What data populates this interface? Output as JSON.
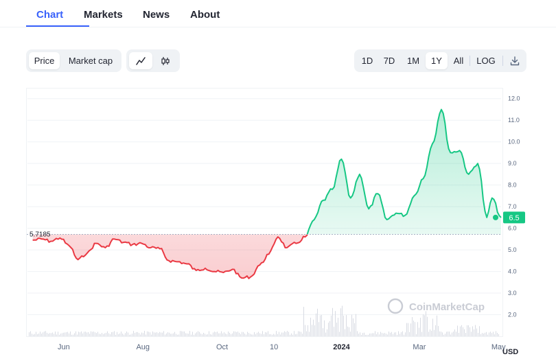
{
  "tabs": {
    "items": [
      {
        "label": "Chart",
        "active": true
      },
      {
        "label": "Markets",
        "active": false
      },
      {
        "label": "News",
        "active": false
      },
      {
        "label": "About",
        "active": false
      }
    ]
  },
  "controls": {
    "price_label": "Price",
    "market_cap_label": "Market cap",
    "line_icon": "line-chart-icon",
    "candle_icon": "candlestick-icon",
    "ranges": [
      "1D",
      "7D",
      "1M",
      "1Y",
      "All"
    ],
    "selected_range": "1Y",
    "log_label": "LOG",
    "download_icon": "download-icon"
  },
  "colors": {
    "up": "#16c784",
    "down": "#ea3943",
    "accent": "#3861fb"
  },
  "chart_data": {
    "type": "area",
    "baseline": 5.7185,
    "baseline_label": "5.7185",
    "current_price_label": "6.5",
    "currency_label": "USD",
    "watermark": "CoinMarketCap",
    "ylim": [
      1.0,
      12.5
    ],
    "yticks": [
      "12.0",
      "11.0",
      "10.0",
      "9.0",
      "8.0",
      "7.0",
      "6.0",
      "5.0",
      "4.0",
      "3.0",
      "2.0"
    ],
    "xlim": [
      "2023-05-04",
      "2024-05-03"
    ],
    "xticks": [
      {
        "label": "Jun",
        "date": "2023-06-01",
        "bold": false
      },
      {
        "label": "Aug",
        "date": "2023-08-01",
        "bold": false
      },
      {
        "label": "Oct",
        "date": "2023-10-01",
        "bold": false
      },
      {
        "label": "10",
        "date": "2023-11-10",
        "bold": false
      },
      {
        "label": "2024",
        "date": "2024-01-01",
        "bold": true
      },
      {
        "label": "Mar",
        "date": "2024-03-01",
        "bold": false
      },
      {
        "label": "May",
        "date": "2024-05-01",
        "bold": false
      }
    ],
    "series": [
      {
        "points": [
          [
            "2023-05-08",
            5.45
          ],
          [
            "2023-05-15",
            5.5
          ],
          [
            "2023-05-22",
            5.4
          ],
          [
            "2023-05-29",
            5.55
          ],
          [
            "2023-06-05",
            5.2
          ],
          [
            "2023-06-12",
            4.55
          ],
          [
            "2023-06-19",
            4.85
          ],
          [
            "2023-06-26",
            5.3
          ],
          [
            "2023-07-03",
            5.1
          ],
          [
            "2023-07-10",
            5.5
          ],
          [
            "2023-07-17",
            5.35
          ],
          [
            "2023-07-24",
            5.25
          ],
          [
            "2023-07-31",
            5.3
          ],
          [
            "2023-08-07",
            5.1
          ],
          [
            "2023-08-14",
            5.05
          ],
          [
            "2023-08-21",
            4.5
          ],
          [
            "2023-08-28",
            4.45
          ],
          [
            "2023-09-04",
            4.35
          ],
          [
            "2023-09-11",
            4.05
          ],
          [
            "2023-09-18",
            4.15
          ],
          [
            "2023-09-25",
            4.0
          ],
          [
            "2023-10-02",
            3.95
          ],
          [
            "2023-10-09",
            4.1
          ],
          [
            "2023-10-16",
            3.7
          ],
          [
            "2023-10-23",
            3.75
          ],
          [
            "2023-10-30",
            4.3
          ],
          [
            "2023-11-06",
            4.8
          ],
          [
            "2023-11-13",
            5.6
          ],
          [
            "2023-11-20",
            5.1
          ],
          [
            "2023-11-27",
            5.3
          ],
          [
            "2023-12-04",
            5.6
          ],
          [
            "2023-12-11",
            6.4
          ],
          [
            "2023-12-18",
            7.3
          ],
          [
            "2023-12-25",
            7.8
          ],
          [
            "2024-01-01",
            9.2
          ],
          [
            "2024-01-08",
            7.4
          ],
          [
            "2024-01-15",
            8.5
          ],
          [
            "2024-01-22",
            6.9
          ],
          [
            "2024-01-29",
            7.6
          ],
          [
            "2024-02-05",
            6.4
          ],
          [
            "2024-02-12",
            6.7
          ],
          [
            "2024-02-19",
            6.6
          ],
          [
            "2024-02-26",
            7.5
          ],
          [
            "2024-03-04",
            8.3
          ],
          [
            "2024-03-11",
            9.9
          ],
          [
            "2024-03-18",
            11.5
          ],
          [
            "2024-03-25",
            9.5
          ],
          [
            "2024-04-01",
            9.6
          ],
          [
            "2024-04-08",
            8.5
          ],
          [
            "2024-04-15",
            9.0
          ],
          [
            "2024-04-22",
            6.5
          ],
          [
            "2024-04-26",
            7.4
          ],
          [
            "2024-05-03",
            6.5
          ]
        ]
      }
    ]
  }
}
